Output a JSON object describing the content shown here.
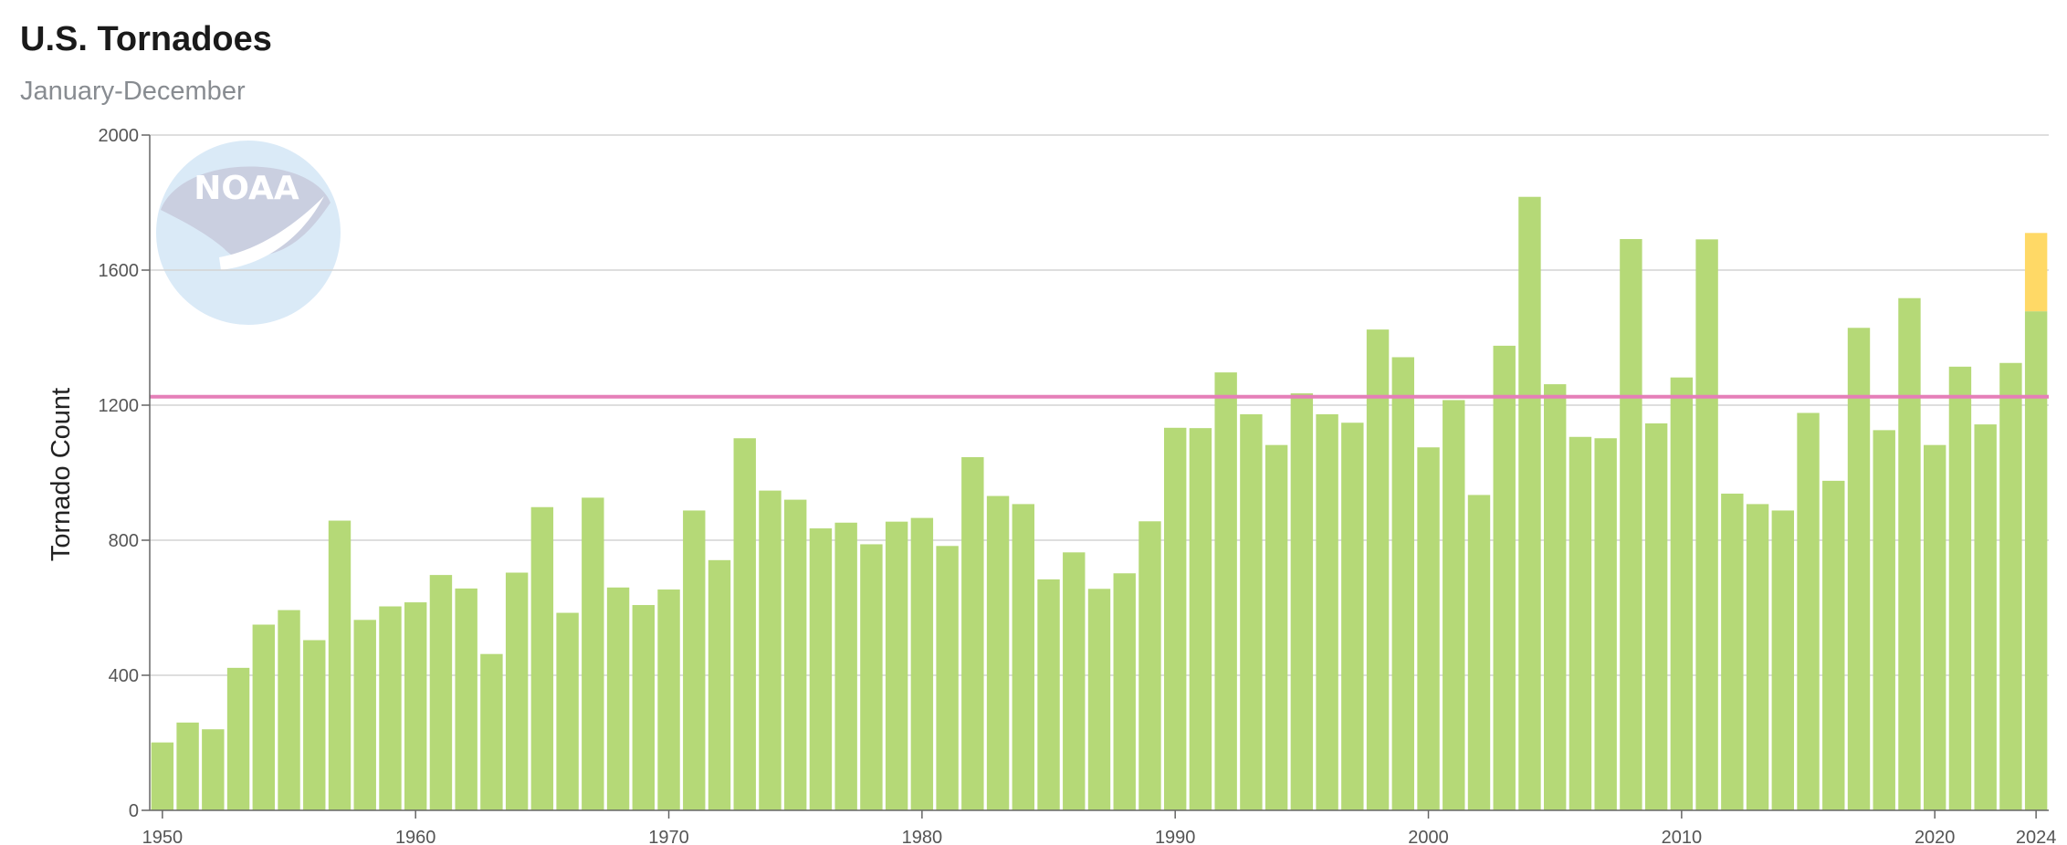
{
  "header": {
    "title": "U.S. Tornadoes",
    "subtitle": "January-December"
  },
  "logo": {
    "text": "NOAA",
    "icon": "noaa-logo-icon"
  },
  "chart_data": {
    "type": "bar",
    "title": "U.S. Tornadoes",
    "subtitle": "January-December",
    "xlabel": "",
    "ylabel": "Tornado Count",
    "ylim": [
      0,
      2000
    ],
    "yticks": [
      0,
      400,
      800,
      1200,
      1600,
      2000
    ],
    "xticks": [
      1950,
      1960,
      1970,
      1980,
      1990,
      2000,
      2010,
      2020,
      2024
    ],
    "grid": true,
    "reference_line": {
      "value": 1225,
      "color": "#e57fb8"
    },
    "colors": {
      "bar": "#b5d977",
      "preliminary": "#ffd966"
    },
    "categories": [
      1950,
      1951,
      1952,
      1953,
      1954,
      1955,
      1956,
      1957,
      1958,
      1959,
      1960,
      1961,
      1962,
      1963,
      1964,
      1965,
      1966,
      1967,
      1968,
      1969,
      1970,
      1971,
      1972,
      1973,
      1974,
      1975,
      1976,
      1977,
      1978,
      1979,
      1980,
      1981,
      1982,
      1983,
      1984,
      1985,
      1986,
      1987,
      1988,
      1989,
      1990,
      1991,
      1992,
      1993,
      1994,
      1995,
      1996,
      1997,
      1998,
      1999,
      2000,
      2001,
      2002,
      2003,
      2004,
      2005,
      2006,
      2007,
      2008,
      2009,
      2010,
      2011,
      2012,
      2013,
      2014,
      2015,
      2016,
      2017,
      2018,
      2019,
      2020,
      2021,
      2022,
      2023,
      2024
    ],
    "series": [
      {
        "values": [
          201,
          260,
          240,
          422,
          550,
          593,
          504,
          858,
          564,
          604,
          616,
          697,
          657,
          463,
          704,
          898,
          585,
          926,
          660,
          608,
          654,
          888,
          741,
          1102,
          947,
          920,
          835,
          852,
          788,
          855,
          866,
          783,
          1046,
          931,
          907,
          684,
          764,
          656,
          702,
          856,
          1133,
          1132,
          1297,
          1173,
          1082,
          1235,
          1173,
          1148,
          1424,
          1342,
          1075,
          1215,
          934,
          1376,
          1817,
          1262,
          1106,
          1102,
          1692,
          1146,
          1282,
          1691,
          938,
          907,
          888,
          1177,
          976,
          1429,
          1126,
          1517,
          1082,
          1314,
          1143,
          1325,
          1478
        ]
      },
      {
        "values": [
          0,
          0,
          0,
          0,
          0,
          0,
          0,
          0,
          0,
          0,
          0,
          0,
          0,
          0,
          0,
          0,
          0,
          0,
          0,
          0,
          0,
          0,
          0,
          0,
          0,
          0,
          0,
          0,
          0,
          0,
          0,
          0,
          0,
          0,
          0,
          0,
          0,
          0,
          0,
          0,
          0,
          0,
          0,
          0,
          0,
          0,
          0,
          0,
          0,
          0,
          0,
          0,
          0,
          0,
          0,
          0,
          0,
          0,
          0,
          0,
          0,
          0,
          0,
          0,
          0,
          0,
          0,
          0,
          0,
          0,
          0,
          0,
          0,
          0,
          232
        ]
      }
    ]
  }
}
